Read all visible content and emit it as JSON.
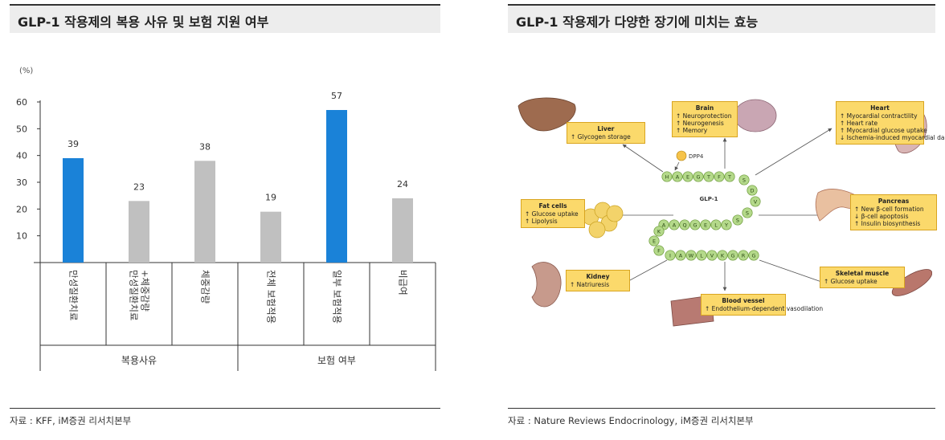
{
  "left_panel": {
    "title": "GLP-1 작용제의 복용 사유 및 보험 지원 여부",
    "source": "자료 : KFF, iM증권 리서치본부"
  },
  "right_panel": {
    "title": "GLP-1 작용제가 다양한 장기에 미치는 효능",
    "source": "자료 : Nature Reviews Endocrinology, iM증권 리서치본부"
  },
  "chart_data": {
    "type": "bar",
    "unit_label": "(%)",
    "categories": [
      "만성질환치료",
      "만성질환치료+체중감량",
      "체중감량",
      "전체 보험적용",
      "일부 보험적용",
      "비급여"
    ],
    "category_lines": [
      [
        "만성질환치료"
      ],
      [
        "만성질환치료",
        "+체중감량"
      ],
      [
        "체중감량"
      ],
      [
        "전체 보험적용"
      ],
      [
        "일부 보험적용"
      ],
      [
        "비급여"
      ]
    ],
    "values": [
      39,
      23,
      38,
      19,
      57,
      24
    ],
    "groups": [
      {
        "label": "복용사유",
        "categories": [
          "만성질환치료",
          "만성질환치료+체중감량",
          "체중감량"
        ]
      },
      {
        "label": "보험 여부",
        "categories": [
          "전체 보험적용",
          "일부 보험적용",
          "비급여"
        ]
      }
    ],
    "highlighted": [
      "만성질환치료",
      "일부 보험적용"
    ],
    "yticks": [
      10,
      20,
      30,
      40,
      50,
      60
    ],
    "ylim": [
      0,
      60
    ],
    "data_labels": true,
    "grid": false,
    "colors": {
      "highlight": "#1a82d8",
      "default": "#c0c0c0"
    }
  },
  "diagram": {
    "center_label": "GLP-1",
    "enzyme_label": "DPP4",
    "sequence": [
      "H",
      "A",
      "E",
      "G",
      "T",
      "F",
      "T",
      "S",
      "D",
      "V",
      "S",
      "S",
      "Y",
      "L",
      "E",
      "G",
      "Q",
      "A",
      "A",
      "K",
      "E",
      "F",
      "I",
      "A",
      "W",
      "L",
      "V",
      "K",
      "G",
      "R",
      "G"
    ],
    "organs": [
      {
        "name": "Liver",
        "effects": [
          "↑ Glycogen storage"
        ]
      },
      {
        "name": "Brain",
        "effects": [
          "↑ Neuroprotection",
          "↑ Neurogenesis",
          "↑ Memory"
        ]
      },
      {
        "name": "Heart",
        "effects": [
          "↑ Myocardial contractility",
          "↑ Heart rate",
          "↑ Myocardial glucose uptake",
          "↓ Ischemia-induced myocardial damage"
        ]
      },
      {
        "name": "Fat cells",
        "effects": [
          "↑ Glucose uptake",
          "↑ Lipolysis"
        ]
      },
      {
        "name": "Pancreas",
        "effects": [
          "↑ New β-cell formation",
          "↓ β-cell apoptosis",
          "↑ Insulin biosynthesis"
        ]
      },
      {
        "name": "Kidney",
        "effects": [
          "↑ Natriuresis"
        ]
      },
      {
        "name": "Blood vessel",
        "effects": [
          "↑ Endothelium-dependent vasodilation"
        ]
      },
      {
        "name": "Skeletal muscle",
        "effects": [
          "↑ Glucose uptake"
        ]
      }
    ],
    "colors": {
      "box": "#fbd96b",
      "bead": "#b4d98a",
      "arrow": "#555555"
    }
  }
}
